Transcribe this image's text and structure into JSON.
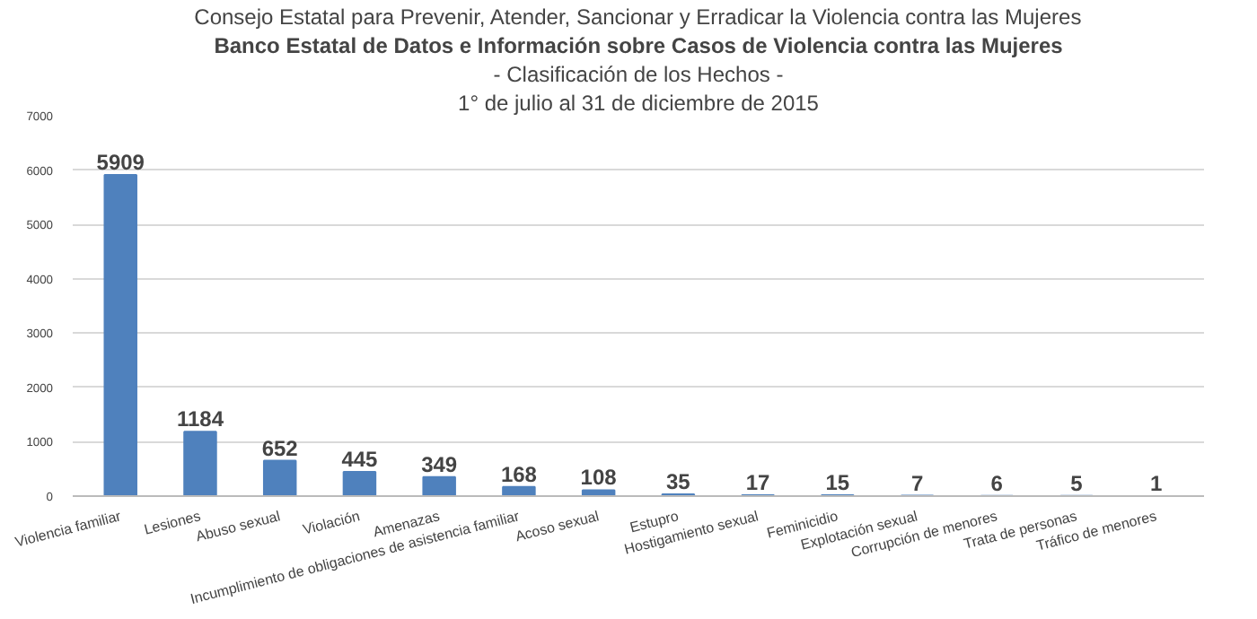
{
  "chart_data": {
    "type": "bar",
    "subtitle": "Consejo Estatal para Prevenir, Atender, Sancionar y Erradicar la Violencia contra las Mujeres",
    "title": "Banco Estatal de Datos e Información sobre Casos de Violencia contra las Mujeres",
    "annotations": [
      "- Clasificación de los Hechos -",
      "1° de julio al 31 de diciembre de 2015"
    ],
    "categories": [
      "Violencia familiar",
      "Lesiones",
      "Abuso sexual",
      "Violación",
      "Amenazas",
      "Incumplimiento de obligaciones de asistencia familiar",
      "Acoso sexual",
      "Estupro",
      "Hostigamiento sexual",
      "Feminicidio",
      "Explotación sexual",
      "Corrupción de menores",
      "Trata de personas",
      "Tráfico de menores"
    ],
    "values": [
      5909,
      1184,
      652,
      445,
      349,
      168,
      108,
      35,
      17,
      15,
      7,
      6,
      5,
      1
    ],
    "color": "#4f81bd",
    "ylim": [
      0,
      7000
    ],
    "yticks": [
      0,
      1000,
      2000,
      3000,
      4000,
      5000,
      6000,
      7000
    ],
    "grid": "y",
    "data_labels": true
  }
}
